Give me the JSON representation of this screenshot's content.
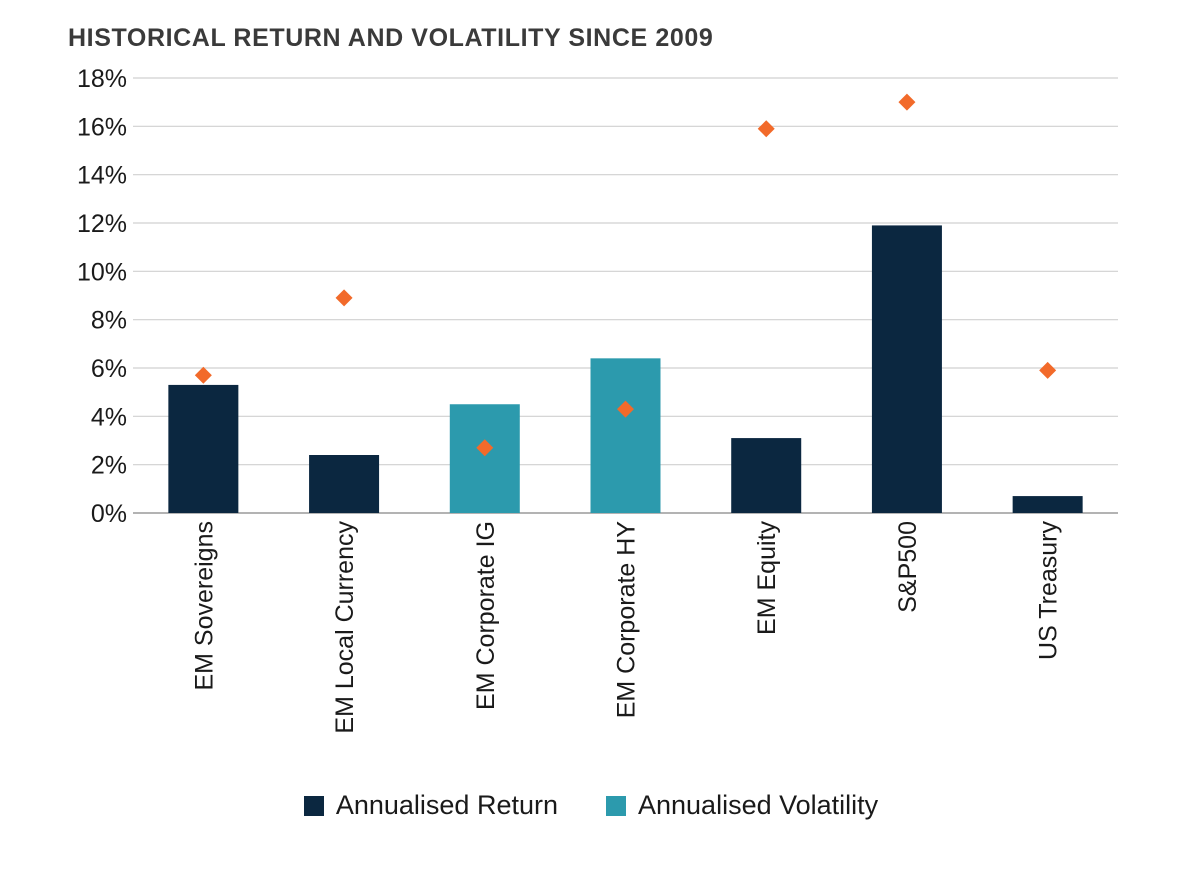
{
  "chart_data": {
    "type": "bar",
    "title": "HISTORICAL RETURN AND VOLATILITY SINCE 2009",
    "categories": [
      "EM Sovereigns",
      "EM Local Currency",
      "EM Corporate IG",
      "EM Corporate HY",
      "EM Equity",
      "S&P500",
      "US Treasury"
    ],
    "series": [
      {
        "name": "Annualised Return",
        "values": [
          5.3,
          2.4,
          4.5,
          6.4,
          3.1,
          11.9,
          0.7
        ],
        "colors": [
          "#0b2740",
          "#0b2740",
          "#2c9aad",
          "#2c9aad",
          "#0b2740",
          "#0b2740",
          "#0b2740"
        ]
      },
      {
        "name": "Annualised Volatility",
        "values": [
          5.7,
          8.9,
          2.7,
          4.3,
          15.9,
          17.0,
          5.9
        ],
        "marker": "diamond",
        "color": "#f26a2a"
      }
    ],
    "ylim": [
      0,
      18
    ],
    "yticks": [
      "0%",
      "2%",
      "4%",
      "6%",
      "8%",
      "10%",
      "12%",
      "14%",
      "16%",
      "18%"
    ],
    "grid": true,
    "legend_position": "bottom",
    "legend": [
      {
        "label": "Annualised Return",
        "color": "#0b2740"
      },
      {
        "label": "Annualised Volatility",
        "color": "#2c9aad"
      }
    ]
  }
}
